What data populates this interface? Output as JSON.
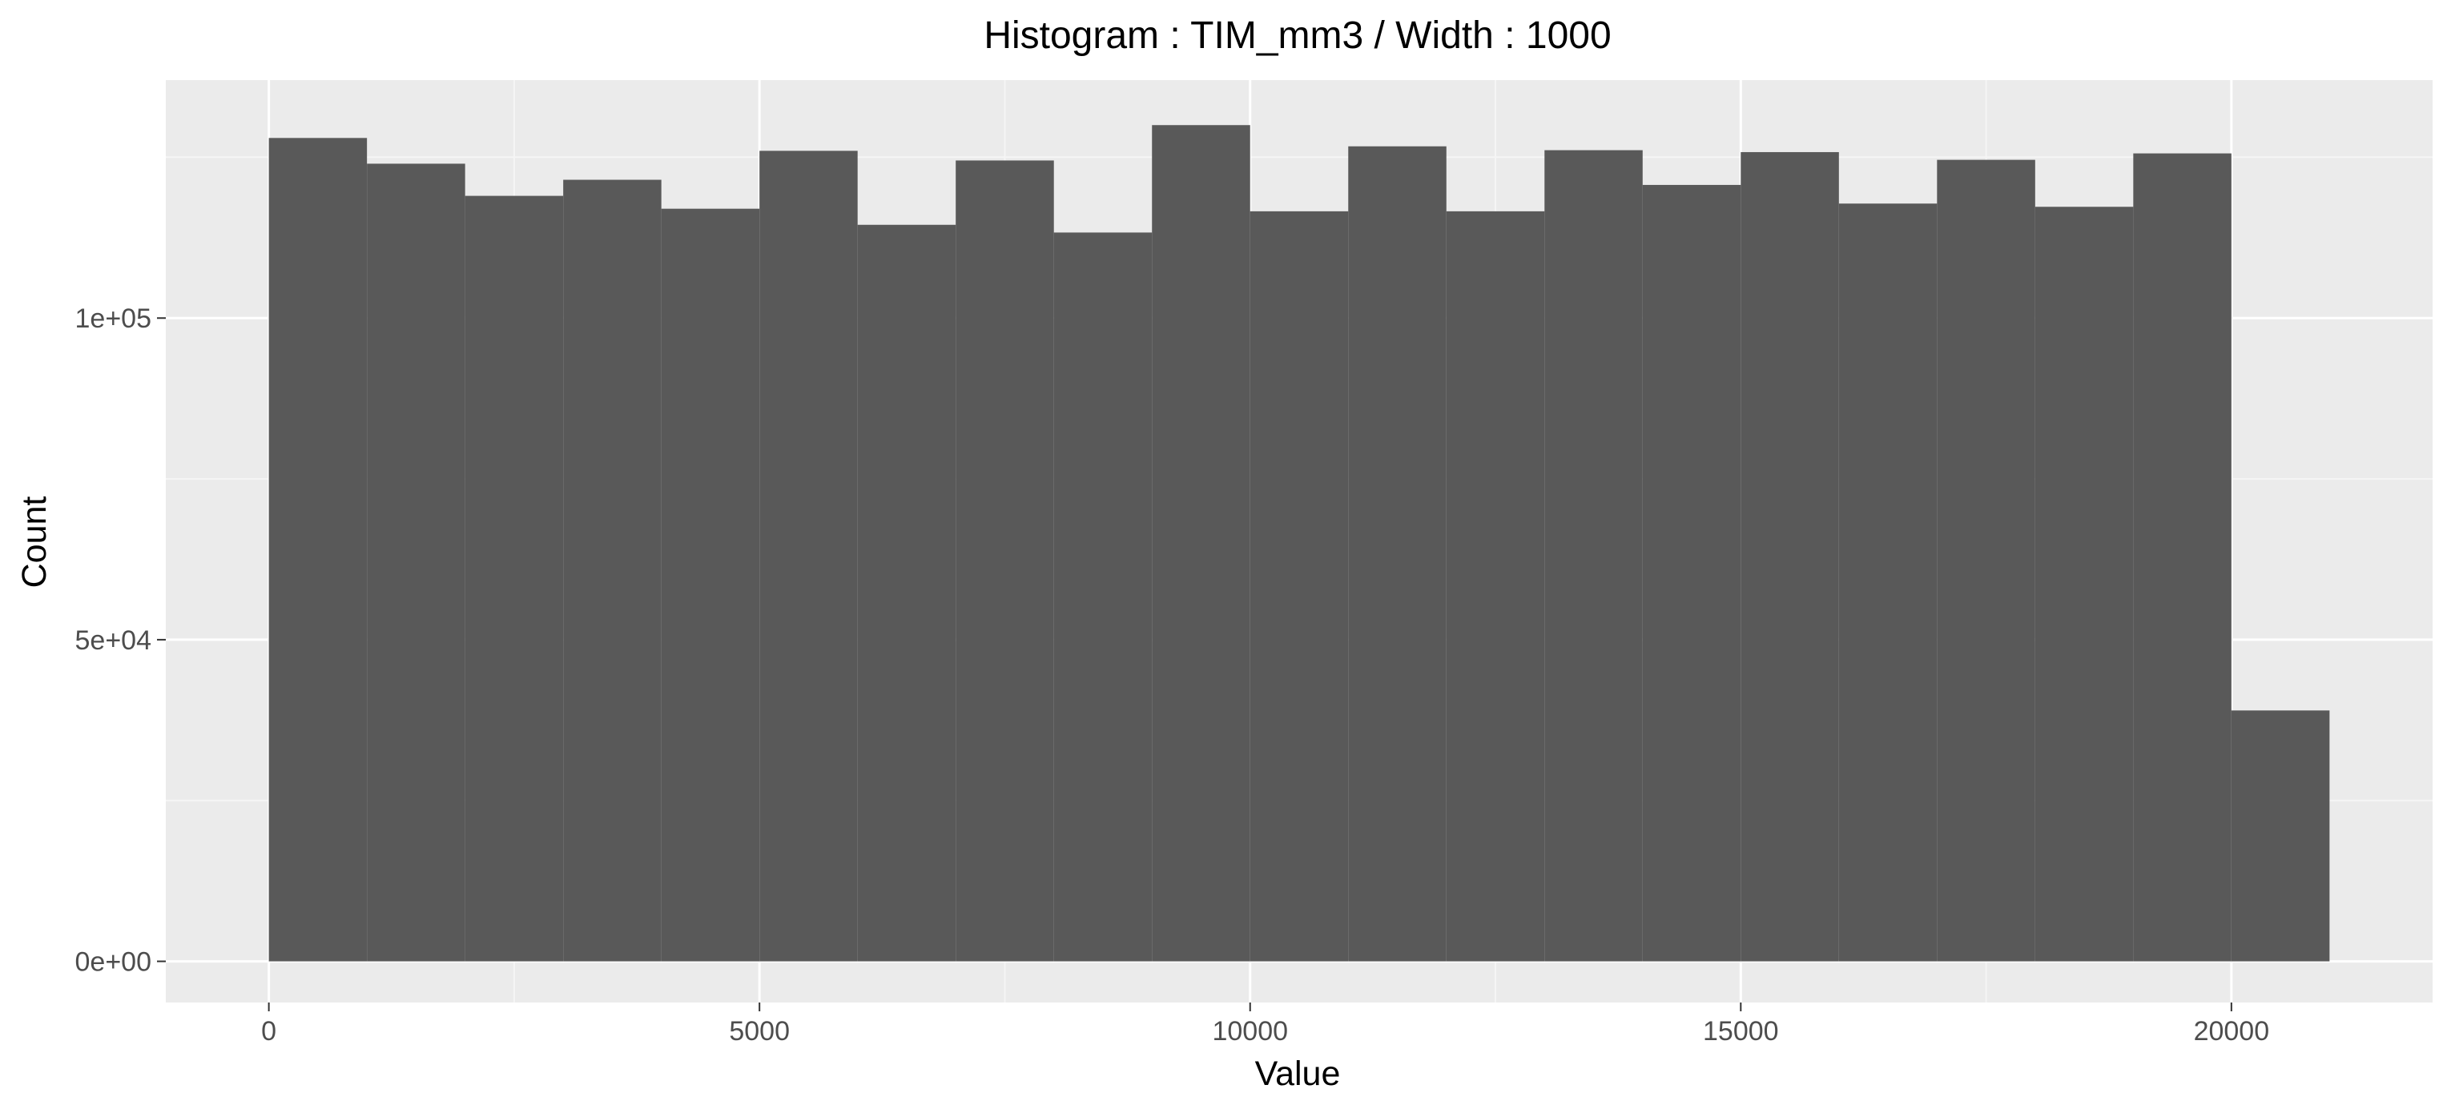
{
  "colors": {
    "panel_background": "#ebebeb",
    "grid_major": "#ffffff",
    "grid_minor": "#f5f5f5",
    "bar_fill": "#595959",
    "tick_mark": "#333333"
  },
  "chart_data": {
    "type": "bar",
    "subtype": "histogram",
    "title": "Histogram : TIM_mm3 / Width : 1000",
    "xlabel": "Value",
    "ylabel": "Count",
    "bin_width": 1000,
    "xlim": [
      -1050,
      22050
    ],
    "ylim": [
      -6400,
      137000
    ],
    "x_ticks": [
      0,
      5000,
      10000,
      15000,
      20000
    ],
    "x_tick_labels": [
      "0",
      "5000",
      "10000",
      "15000",
      "20000"
    ],
    "y_ticks": [
      0,
      50000,
      100000
    ],
    "y_tick_labels": [
      "0e+00",
      "5e+04",
      "1e+05"
    ],
    "grid": true,
    "legend": "none",
    "bins": [
      {
        "start": 0,
        "end": 1000,
        "count": 128000
      },
      {
        "start": 1000,
        "end": 2000,
        "count": 124000
      },
      {
        "start": 2000,
        "end": 3000,
        "count": 119000
      },
      {
        "start": 3000,
        "end": 4000,
        "count": 121500
      },
      {
        "start": 4000,
        "end": 5000,
        "count": 117000
      },
      {
        "start": 5000,
        "end": 6000,
        "count": 126000
      },
      {
        "start": 6000,
        "end": 7000,
        "count": 114500
      },
      {
        "start": 7000,
        "end": 8000,
        "count": 124500
      },
      {
        "start": 8000,
        "end": 9000,
        "count": 113300
      },
      {
        "start": 9000,
        "end": 10000,
        "count": 130000
      },
      {
        "start": 10000,
        "end": 11000,
        "count": 116600
      },
      {
        "start": 11000,
        "end": 12000,
        "count": 126700
      },
      {
        "start": 12000,
        "end": 13000,
        "count": 116600
      },
      {
        "start": 13000,
        "end": 14000,
        "count": 126100
      },
      {
        "start": 14000,
        "end": 15000,
        "count": 120700
      },
      {
        "start": 15000,
        "end": 16000,
        "count": 125800
      },
      {
        "start": 16000,
        "end": 17000,
        "count": 117800
      },
      {
        "start": 17000,
        "end": 18000,
        "count": 124600
      },
      {
        "start": 18000,
        "end": 19000,
        "count": 117300
      },
      {
        "start": 19000,
        "end": 20000,
        "count": 125600
      },
      {
        "start": 20000,
        "end": 21000,
        "count": 39000
      }
    ]
  }
}
